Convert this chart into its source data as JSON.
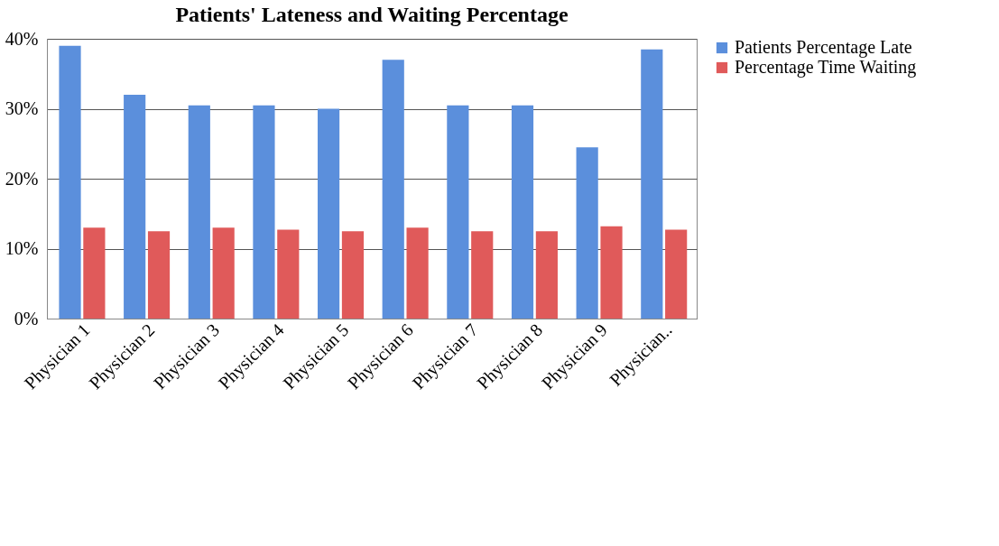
{
  "chart_data": {
    "type": "bar",
    "title": "Patients' Lateness and Waiting Percentage",
    "categories": [
      "Physician 1",
      "Physician 2",
      "Physician 3",
      "Physician 4",
      "Physician 5",
      "Physician 6",
      "Physician 7",
      "Physician 8",
      "Physician 9",
      "Physician.."
    ],
    "series": [
      {
        "name": "Patients Percentage Late",
        "color": "#5b8fdc",
        "values": [
          39,
          32,
          30.5,
          30.5,
          30,
          37,
          30.5,
          30.5,
          24.5,
          38.5
        ]
      },
      {
        "name": "Percentage Time Waiting",
        "color": "#e05a5a",
        "values": [
          13,
          12.5,
          13,
          12.7,
          12.5,
          13,
          12.5,
          12.5,
          13.2,
          12.7
        ]
      }
    ],
    "ylim": [
      0,
      40
    ],
    "yticks": [
      {
        "value": 0,
        "label": "0%"
      },
      {
        "value": 10,
        "label": "10%"
      },
      {
        "value": 20,
        "label": "20%"
      },
      {
        "value": 30,
        "label": "30%"
      },
      {
        "value": 40,
        "label": "40%"
      }
    ],
    "grid": "y",
    "legend": "right"
  }
}
